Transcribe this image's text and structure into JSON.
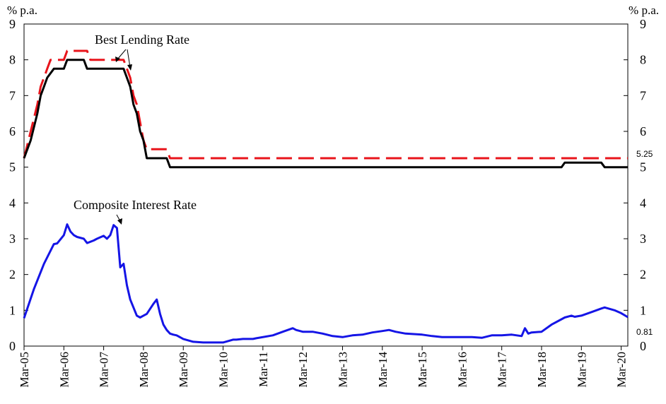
{
  "chart_data": {
    "type": "line",
    "x_type": "date",
    "x_range": [
      "2005-03",
      "2020-05"
    ],
    "x_ticks": [
      "Mar-05",
      "Mar-06",
      "Mar-07",
      "Mar-08",
      "Mar-09",
      "Mar-10",
      "Mar-11",
      "Mar-12",
      "Mar-13",
      "Mar-14",
      "Mar-15",
      "Mar-16",
      "Mar-17",
      "Mar-18",
      "Mar-19",
      "Mar-20"
    ],
    "ylim": [
      0,
      9
    ],
    "y_ticks": [
      0,
      1,
      2,
      3,
      4,
      5,
      6,
      7,
      8,
      9
    ],
    "ylabel_left": "% p.a.",
    "ylabel_right": "% p.a.",
    "grid": false,
    "annotations": [
      {
        "text": "Best Lending Rate",
        "target_x": "2007-09",
        "target_y": 7.8
      },
      {
        "text": "Composite Interest Rate",
        "target_x": "2007-08",
        "target_y": 3.4
      }
    ],
    "end_labels": [
      {
        "text": "5.25",
        "series": "dashed",
        "y": 5.25
      },
      {
        "text": "0.81",
        "series": "composite",
        "y": 0.81
      }
    ],
    "series": [
      {
        "style": "dashed",
        "color": "#e8141b",
        "x": [
          "2005-03",
          "2005-05",
          "2005-07",
          "2005-08",
          "2005-09",
          "2005-10",
          "2005-11",
          "2005-12",
          "2006-03",
          "2006-04",
          "2006-10",
          "2006-11",
          "2007-09",
          "2007-10",
          "2007-11",
          "2007-12",
          "2008-01",
          "2008-02",
          "2008-03",
          "2008-04",
          "2008-10",
          "2008-11",
          "2019-06",
          "2019-07",
          "2020-05"
        ],
        "values": [
          5.25,
          6.0,
          6.75,
          7.25,
          7.5,
          7.75,
          8.0,
          8.0,
          8.0,
          8.25,
          8.25,
          8.0,
          8.0,
          7.75,
          7.5,
          7.0,
          6.75,
          6.25,
          5.75,
          5.5,
          5.5,
          5.25,
          5.25,
          5.25,
          5.25
        ]
      },
      {
        "style": "solid",
        "color": "#000000",
        "x": [
          "2005-03",
          "2005-05",
          "2005-07",
          "2005-08",
          "2005-09",
          "2005-10",
          "2005-12",
          "2006-02",
          "2006-03",
          "2006-04",
          "2006-09",
          "2006-10",
          "2007-09",
          "2007-10",
          "2007-11",
          "2007-12",
          "2008-01",
          "2008-02",
          "2008-03",
          "2008-04",
          "2008-10",
          "2008-11",
          "2018-09",
          "2018-10",
          "2019-09",
          "2019-10",
          "2020-05"
        ],
        "values": [
          5.25,
          5.75,
          6.5,
          7.0,
          7.25,
          7.5,
          7.75,
          7.75,
          7.75,
          8.0,
          8.0,
          7.75,
          7.75,
          7.5,
          7.25,
          6.75,
          6.5,
          6.0,
          5.75,
          5.25,
          5.25,
          5.0,
          5.0,
          5.125,
          5.125,
          5.0,
          5.0
        ]
      },
      {
        "name": "Composite Interest Rate",
        "style": "solid",
        "color": "#1515e6",
        "x": [
          "2005-03",
          "2005-06",
          "2005-09",
          "2005-12",
          "2006-01",
          "2006-03",
          "2006-04",
          "2006-05",
          "2006-06",
          "2006-07",
          "2006-09",
          "2006-10",
          "2006-12",
          "2007-01",
          "2007-03",
          "2007-04",
          "2007-05",
          "2007-06",
          "2007-07",
          "2007-08",
          "2007-09",
          "2007-10",
          "2007-11",
          "2008-01",
          "2008-02",
          "2008-03",
          "2008-04",
          "2008-06",
          "2008-07",
          "2008-08",
          "2008-09",
          "2008-10",
          "2008-11",
          "2008-12",
          "2009-01",
          "2009-03",
          "2009-06",
          "2009-09",
          "2009-12",
          "2010-03",
          "2010-06",
          "2010-07",
          "2010-09",
          "2010-12",
          "2011-01",
          "2011-06",
          "2011-09",
          "2011-12",
          "2012-01",
          "2012-03",
          "2012-06",
          "2012-09",
          "2012-12",
          "2013-03",
          "2013-06",
          "2013-09",
          "2013-12",
          "2014-03",
          "2014-05",
          "2014-07",
          "2014-10",
          "2015-03",
          "2015-06",
          "2015-09",
          "2015-12",
          "2016-03",
          "2016-06",
          "2016-09",
          "2016-12",
          "2017-03",
          "2017-06",
          "2017-09",
          "2017-10",
          "2017-11",
          "2017-12",
          "2018-03",
          "2018-06",
          "2018-09",
          "2018-10",
          "2018-12",
          "2019-01",
          "2019-03",
          "2019-06",
          "2019-09",
          "2019-10",
          "2020-01",
          "2020-03",
          "2020-05"
        ],
        "values": [
          0.78,
          1.6,
          2.3,
          2.85,
          2.87,
          3.1,
          3.4,
          3.2,
          3.1,
          3.05,
          3.0,
          2.88,
          2.95,
          3.0,
          3.08,
          3.0,
          3.1,
          3.38,
          3.3,
          2.2,
          2.3,
          1.7,
          1.3,
          0.85,
          0.8,
          0.85,
          0.9,
          1.18,
          1.3,
          0.9,
          0.6,
          0.45,
          0.35,
          0.32,
          0.3,
          0.2,
          0.12,
          0.1,
          0.1,
          0.1,
          0.18,
          0.18,
          0.2,
          0.2,
          0.22,
          0.3,
          0.4,
          0.5,
          0.45,
          0.4,
          0.4,
          0.35,
          0.28,
          0.25,
          0.3,
          0.32,
          0.38,
          0.42,
          0.45,
          0.4,
          0.35,
          0.32,
          0.28,
          0.25,
          0.25,
          0.25,
          0.25,
          0.23,
          0.3,
          0.3,
          0.32,
          0.28,
          0.5,
          0.35,
          0.38,
          0.4,
          0.6,
          0.75,
          0.8,
          0.85,
          0.82,
          0.85,
          0.95,
          1.05,
          1.08,
          1.0,
          0.92,
          0.81
        ]
      }
    ]
  }
}
